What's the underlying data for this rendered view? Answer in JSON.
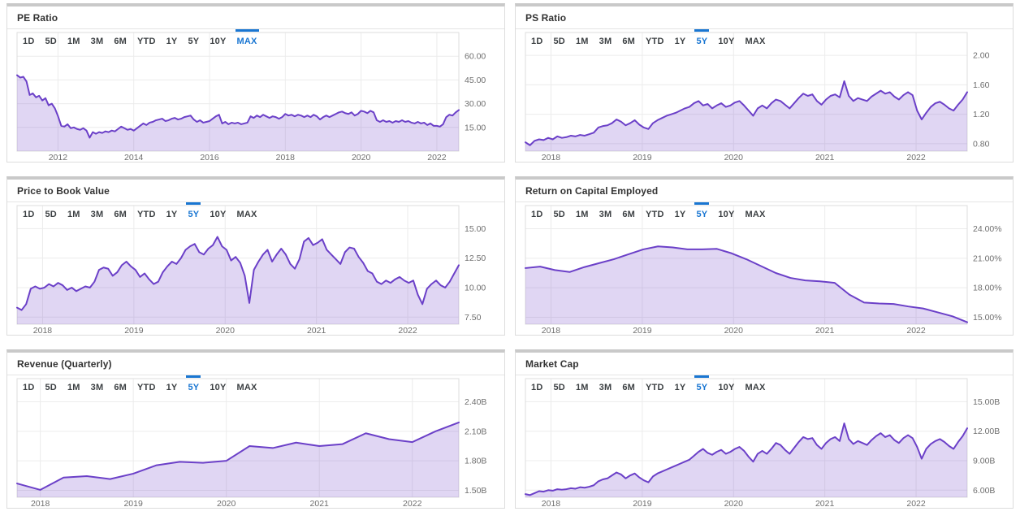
{
  "range_buttons": [
    "1D",
    "5D",
    "1M",
    "3M",
    "6M",
    "YTD",
    "1Y",
    "5Y",
    "10Y",
    "MAX"
  ],
  "colors": {
    "line": "#6b40c8",
    "fill": "rgba(113,70,200,0.22)",
    "active_tab": "#1976d2",
    "tab_text": "#3c4043",
    "title_text": "#333333",
    "grid": "#ececec",
    "frame": "#dedede",
    "axis_text": "#6e6e6e",
    "panel_border": "#dcdcdc",
    "panel_top_strip": "#c9c9c9"
  },
  "chart_data": [
    {
      "title": "PE Ratio",
      "type": "area",
      "selected_range": "MAX",
      "x_start": 2010.92,
      "x_end": 2022.58,
      "xtick_values": [
        2012,
        2014,
        2016,
        2018,
        2020,
        2022
      ],
      "xtick_labels": [
        "2012",
        "2014",
        "2016",
        "2018",
        "2020",
        "2022"
      ],
      "ylim": [
        0,
        75
      ],
      "ytick_values": [
        15,
        30,
        45,
        60
      ],
      "ytick_labels": [
        "15.00",
        "30.00",
        "45.00",
        "60.00"
      ],
      "values": [
        48,
        46.5,
        47,
        44,
        35.5,
        36.5,
        34,
        35,
        32,
        33.5,
        29,
        30,
        27,
        22,
        16,
        15.5,
        17,
        14.5,
        15,
        14,
        13.5,
        14.5,
        13,
        8.5,
        12,
        11,
        12,
        11.5,
        12.5,
        12,
        13,
        12.5,
        14,
        15.5,
        14.5,
        13.5,
        14,
        13,
        14.5,
        16,
        17.5,
        16.5,
        18,
        18.5,
        19.5,
        20,
        20.5,
        19,
        19.5,
        20.5,
        21,
        20,
        20.5,
        21.5,
        22,
        22.5,
        20,
        18.5,
        19.5,
        18,
        18.5,
        19,
        20.5,
        22,
        23,
        17.5,
        18.5,
        17,
        18,
        17.5,
        18,
        17,
        17.5,
        18,
        22,
        21,
        22.5,
        21.5,
        23,
        22,
        21,
        22,
        21.5,
        20.5,
        21.5,
        23.5,
        22.5,
        23,
        22,
        23,
        22.5,
        21.5,
        22.5,
        21.5,
        23,
        22,
        20,
        21.5,
        22.5,
        21.5,
        22.5,
        23.5,
        24.5,
        25,
        24,
        23.5,
        24.5,
        22.5,
        23.5,
        25.5,
        25,
        24,
        25.5,
        24.5,
        19.5,
        18.5,
        19.5,
        18.5,
        19,
        18,
        19,
        18.5,
        19.5,
        18.5,
        19,
        18,
        17.5,
        18.5,
        17.5,
        18,
        16.5,
        17.5,
        16,
        16,
        15.5,
        17,
        21.5,
        23,
        22.5,
        24.5,
        26
      ]
    },
    {
      "title": "PS Ratio",
      "type": "area",
      "selected_range": "5Y",
      "x_start": 2017.72,
      "x_end": 2022.56,
      "xtick_values": [
        2018,
        2019,
        2020,
        2021,
        2022
      ],
      "xtick_labels": [
        "2018",
        "2019",
        "2020",
        "2021",
        "2022"
      ],
      "ylim": [
        0.7,
        2.31
      ],
      "ytick_values": [
        0.8,
        1.2,
        1.6,
        2.0
      ],
      "ytick_labels": [
        "0.80",
        "1.20",
        "1.60",
        "2.00"
      ],
      "values": [
        0.82,
        0.78,
        0.84,
        0.86,
        0.85,
        0.88,
        0.86,
        0.9,
        0.88,
        0.89,
        0.91,
        0.9,
        0.92,
        0.91,
        0.93,
        0.95,
        1.02,
        1.04,
        1.05,
        1.08,
        1.13,
        1.1,
        1.05,
        1.08,
        1.12,
        1.06,
        1.02,
        1.0,
        1.08,
        1.12,
        1.15,
        1.18,
        1.2,
        1.22,
        1.25,
        1.28,
        1.3,
        1.35,
        1.38,
        1.32,
        1.34,
        1.28,
        1.32,
        1.35,
        1.3,
        1.32,
        1.36,
        1.38,
        1.32,
        1.25,
        1.18,
        1.28,
        1.32,
        1.28,
        1.35,
        1.4,
        1.38,
        1.33,
        1.28,
        1.35,
        1.42,
        1.48,
        1.45,
        1.47,
        1.38,
        1.33,
        1.4,
        1.45,
        1.47,
        1.43,
        1.65,
        1.45,
        1.38,
        1.42,
        1.4,
        1.38,
        1.44,
        1.48,
        1.52,
        1.48,
        1.5,
        1.44,
        1.4,
        1.46,
        1.5,
        1.46,
        1.25,
        1.13,
        1.22,
        1.3,
        1.35,
        1.37,
        1.33,
        1.28,
        1.25,
        1.33,
        1.4,
        1.5
      ]
    },
    {
      "title": "Price to Book Value",
      "type": "area",
      "selected_range": "5Y",
      "x_start": 2017.72,
      "x_end": 2022.56,
      "xtick_values": [
        2018,
        2019,
        2020,
        2021,
        2022
      ],
      "xtick_labels": [
        "2018",
        "2019",
        "2020",
        "2021",
        "2022"
      ],
      "ylim": [
        6.9,
        16.95
      ],
      "ytick_values": [
        7.5,
        10,
        12.5,
        15
      ],
      "ytick_labels": [
        "7.50",
        "10.00",
        "12.50",
        "15.00"
      ],
      "values": [
        8.3,
        8.1,
        8.6,
        9.9,
        10.1,
        9.9,
        10.0,
        10.3,
        10.1,
        10.4,
        10.2,
        9.8,
        10.0,
        9.7,
        9.9,
        10.1,
        10.0,
        10.5,
        11.5,
        11.7,
        11.6,
        11.0,
        11.3,
        11.9,
        12.2,
        11.8,
        11.5,
        10.9,
        11.2,
        10.7,
        10.3,
        10.5,
        11.3,
        11.8,
        12.2,
        12.0,
        12.5,
        13.2,
        13.5,
        13.7,
        13.0,
        12.8,
        13.3,
        13.6,
        14.3,
        13.5,
        13.2,
        12.3,
        12.6,
        12.1,
        11.0,
        8.7,
        11.5,
        12.2,
        12.8,
        13.2,
        12.2,
        12.8,
        13.3,
        12.8,
        12.0,
        11.6,
        12.4,
        13.9,
        14.2,
        13.6,
        13.8,
        14.1,
        13.2,
        12.8,
        12.4,
        12.0,
        13.0,
        13.4,
        13.3,
        12.6,
        12.1,
        11.4,
        11.2,
        10.5,
        10.3,
        10.6,
        10.4,
        10.7,
        10.9,
        10.6,
        10.4,
        10.6,
        9.4,
        8.6,
        9.9,
        10.3,
        10.6,
        10.2,
        10.0,
        10.5,
        11.2,
        11.9
      ]
    },
    {
      "title": "Return on Capital Employed",
      "type": "area",
      "selected_range": "5Y",
      "x_start": 2017.72,
      "x_end": 2022.56,
      "xtick_values": [
        2018,
        2019,
        2020,
        2021,
        2022
      ],
      "xtick_labels": [
        "2018",
        "2019",
        "2020",
        "2021",
        "2022"
      ],
      "ylim": [
        14.3,
        26.35
      ],
      "ytick_values": [
        15,
        18,
        21,
        24
      ],
      "ytick_labels": [
        "15.00%",
        "18.00%",
        "21.00%",
        "24.00%"
      ],
      "values": [
        20.0,
        20.15,
        19.8,
        19.6,
        20.1,
        20.5,
        20.9,
        21.4,
        21.9,
        22.2,
        22.1,
        21.9,
        21.9,
        21.95,
        21.5,
        20.9,
        20.2,
        19.5,
        19.0,
        18.75,
        18.65,
        18.5,
        17.3,
        16.5,
        16.4,
        16.35,
        16.1,
        15.9,
        15.5,
        15.1,
        14.5
      ]
    },
    {
      "title": "Revenue (Quarterly)",
      "type": "area",
      "selected_range": "5Y",
      "x_start": 2017.75,
      "x_end": 2022.5,
      "xtick_values": [
        2018,
        2019,
        2020,
        2021,
        2022
      ],
      "xtick_labels": [
        "2018",
        "2019",
        "2020",
        "2021",
        "2022"
      ],
      "ylim": [
        1.43,
        2.635
      ],
      "ytick_values": [
        1.5,
        1.8,
        2.1,
        2.4
      ],
      "ytick_labels": [
        "1.50B",
        "1.80B",
        "2.10B",
        "2.40B"
      ],
      "values": [
        1.57,
        1.505,
        1.63,
        1.645,
        1.615,
        1.67,
        1.755,
        1.79,
        1.78,
        1.8,
        1.95,
        1.93,
        1.985,
        1.95,
        1.97,
        2.08,
        2.02,
        1.99,
        2.1,
        2.19
      ]
    },
    {
      "title": "Market Cap",
      "type": "area",
      "selected_range": "5Y",
      "x_start": 2017.72,
      "x_end": 2022.56,
      "xtick_values": [
        2018,
        2019,
        2020,
        2021,
        2022
      ],
      "xtick_labels": [
        "2018",
        "2019",
        "2020",
        "2021",
        "2022"
      ],
      "ylim": [
        5.28,
        17.35
      ],
      "ytick_values": [
        6,
        9,
        12,
        15
      ],
      "ytick_labels": [
        "6.00B",
        "9.00B",
        "12.00B",
        "15.00B"
      ],
      "values": [
        5.6,
        5.5,
        5.7,
        5.9,
        5.85,
        6.0,
        5.95,
        6.1,
        6.05,
        6.1,
        6.2,
        6.15,
        6.3,
        6.25,
        6.35,
        6.5,
        6.9,
        7.1,
        7.2,
        7.5,
        7.8,
        7.6,
        7.2,
        7.5,
        7.7,
        7.3,
        7.0,
        6.8,
        7.4,
        7.7,
        7.9,
        8.1,
        8.3,
        8.5,
        8.7,
        8.9,
        9.1,
        9.5,
        9.9,
        10.2,
        9.8,
        9.6,
        9.9,
        10.1,
        9.7,
        9.9,
        10.2,
        10.4,
        10.0,
        9.4,
        8.9,
        9.7,
        10.0,
        9.7,
        10.2,
        10.8,
        10.6,
        10.1,
        9.7,
        10.3,
        10.9,
        11.4,
        11.2,
        11.3,
        10.6,
        10.2,
        10.8,
        11.2,
        11.4,
        11.0,
        12.8,
        11.2,
        10.7,
        11.0,
        10.8,
        10.6,
        11.1,
        11.5,
        11.8,
        11.4,
        11.6,
        11.1,
        10.8,
        11.3,
        11.6,
        11.3,
        10.4,
        9.2,
        10.2,
        10.7,
        11.0,
        11.2,
        10.9,
        10.5,
        10.2,
        10.9,
        11.5,
        12.3
      ]
    }
  ]
}
